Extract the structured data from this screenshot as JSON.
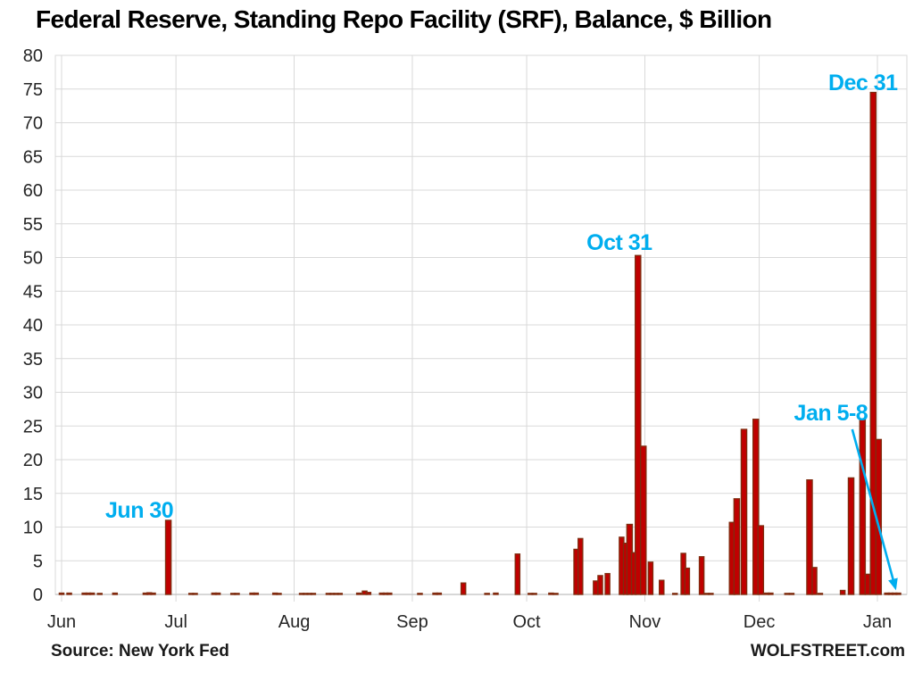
{
  "chart_data": {
    "type": "bar",
    "title": "Federal Reserve, Standing Repo Facility (SRF), Balance, $ Billion",
    "source": "Source: New York Fed",
    "brand": "WOLFSTREET.com",
    "xlabel": "",
    "ylabel": "$ Billion",
    "ylim": [
      0,
      80
    ],
    "ytick_step": 5,
    "legend": "none",
    "grid": "on",
    "x_axis_months": [
      "Jun",
      "Jul",
      "Aug",
      "Sep",
      "Oct",
      "Nov",
      "Dec",
      "Jan"
    ],
    "month_start_days": [
      0,
      30,
      61,
      92,
      122,
      153,
      183,
      214
    ],
    "colors": {
      "bar_fill": "#c00000",
      "bar_border": "#7e2d10",
      "grid": "#d9d9d9",
      "axis_line": "#bfbfbf",
      "annotation": "#00aeef",
      "text": "#262626"
    },
    "bars": [
      {
        "d": 0,
        "v": 0.2
      },
      {
        "d": 2,
        "v": 0.2
      },
      {
        "d": 6,
        "v": 0.2
      },
      {
        "d": 7,
        "v": 0.2
      },
      {
        "d": 8,
        "v": 0.2
      },
      {
        "d": 10,
        "v": 0.15
      },
      {
        "d": 14,
        "v": 0.2
      },
      {
        "d": 22,
        "v": 0.2
      },
      {
        "d": 23,
        "v": 0.25
      },
      {
        "d": 24,
        "v": 0.2
      },
      {
        "d": 28,
        "v": 11.0
      },
      {
        "d": 34,
        "v": 0.15
      },
      {
        "d": 35,
        "v": 0.15
      },
      {
        "d": 40,
        "v": 0.2
      },
      {
        "d": 41,
        "v": 0.2
      },
      {
        "d": 45,
        "v": 0.15
      },
      {
        "d": 46,
        "v": 0.15
      },
      {
        "d": 50,
        "v": 0.2
      },
      {
        "d": 51,
        "v": 0.2
      },
      {
        "d": 56,
        "v": 0.2
      },
      {
        "d": 57,
        "v": 0.15
      },
      {
        "d": 63,
        "v": 0.15
      },
      {
        "d": 64,
        "v": 0.15
      },
      {
        "d": 65,
        "v": 0.15
      },
      {
        "d": 66,
        "v": 0.15
      },
      {
        "d": 70,
        "v": 0.15
      },
      {
        "d": 71,
        "v": 0.15
      },
      {
        "d": 72,
        "v": 0.15
      },
      {
        "d": 73,
        "v": 0.15
      },
      {
        "d": 78,
        "v": 0.2
      },
      {
        "d": 79.5,
        "v": 0.5
      },
      {
        "d": 80.5,
        "v": 0.3
      },
      {
        "d": 84,
        "v": 0.2
      },
      {
        "d": 85,
        "v": 0.2
      },
      {
        "d": 86,
        "v": 0.2
      },
      {
        "d": 94,
        "v": 0.15
      },
      {
        "d": 98,
        "v": 0.2
      },
      {
        "d": 99,
        "v": 0.2
      },
      {
        "d": 105.4,
        "v": 1.7
      },
      {
        "d": 111.6,
        "v": 0.15
      },
      {
        "d": 113.9,
        "v": 0.2
      },
      {
        "d": 119.6,
        "v": 6.0
      },
      {
        "d": 123,
        "v": 0.15
      },
      {
        "d": 124,
        "v": 0.15
      },
      {
        "d": 128.4,
        "v": 0.2
      },
      {
        "d": 129.6,
        "v": 0.15
      },
      {
        "d": 135,
        "v": 6.7
      },
      {
        "d": 136.1,
        "v": 8.3
      },
      {
        "d": 140.1,
        "v": 2.0
      },
      {
        "d": 141.3,
        "v": 2.8
      },
      {
        "d": 143.2,
        "v": 3.1
      },
      {
        "d": 146.9,
        "v": 8.5
      },
      {
        "d": 148,
        "v": 7.6
      },
      {
        "d": 149,
        "v": 10.4
      },
      {
        "d": 150.1,
        "v": 6.2
      },
      {
        "d": 151.2,
        "v": 50.3
      },
      {
        "d": 152.6,
        "v": 22.0
      },
      {
        "d": 154.5,
        "v": 4.8
      },
      {
        "d": 157.4,
        "v": 2.1
      },
      {
        "d": 160.9,
        "v": 0.15
      },
      {
        "d": 163.1,
        "v": 6.1
      },
      {
        "d": 164.1,
        "v": 3.9
      },
      {
        "d": 167.9,
        "v": 5.6
      },
      {
        "d": 169.3,
        "v": 0.15
      },
      {
        "d": 170.3,
        "v": 0.15
      },
      {
        "d": 175.9,
        "v": 10.7
      },
      {
        "d": 177.1,
        "v": 14.2
      },
      {
        "d": 179,
        "v": 24.5
      },
      {
        "d": 182.1,
        "v": 26.0
      },
      {
        "d": 183.4,
        "v": 10.2
      },
      {
        "d": 185,
        "v": 0.2
      },
      {
        "d": 186,
        "v": 0.2
      },
      {
        "d": 190.3,
        "v": 0.15
      },
      {
        "d": 191.5,
        "v": 0.15
      },
      {
        "d": 196.2,
        "v": 17.0
      },
      {
        "d": 197.5,
        "v": 4.0
      },
      {
        "d": 199,
        "v": 0.15
      },
      {
        "d": 204.9,
        "v": 0.6
      },
      {
        "d": 207.1,
        "v": 17.3
      },
      {
        "d": 210.1,
        "v": 26.0
      },
      {
        "d": 211.4,
        "v": 3.0
      },
      {
        "d": 212.9,
        "v": 74.5
      },
      {
        "d": 214.3,
        "v": 23.0
      },
      {
        "d": 216.5,
        "v": 0.2
      },
      {
        "d": 217.5,
        "v": 0.2
      },
      {
        "d": 218.5,
        "v": 0.2
      },
      {
        "d": 219.5,
        "v": 0.2
      }
    ],
    "annotations": [
      {
        "id": "jun-30",
        "text": "Jun 30",
        "d": 20.4,
        "v": 12.6
      },
      {
        "id": "oct-31",
        "text": "Oct 31",
        "d": 146.3,
        "v": 52.3
      },
      {
        "id": "dec-31",
        "text": "Dec 31",
        "d": 210.2,
        "v": 76.0
      },
      {
        "id": "jan-5-8",
        "text": "Jan 5-8",
        "d": 201.8,
        "v": 27.0
      }
    ],
    "arrow": {
      "from_d": 207.4,
      "from_v": 24.5,
      "to_d": 218.7,
      "to_v": 1.0
    }
  }
}
